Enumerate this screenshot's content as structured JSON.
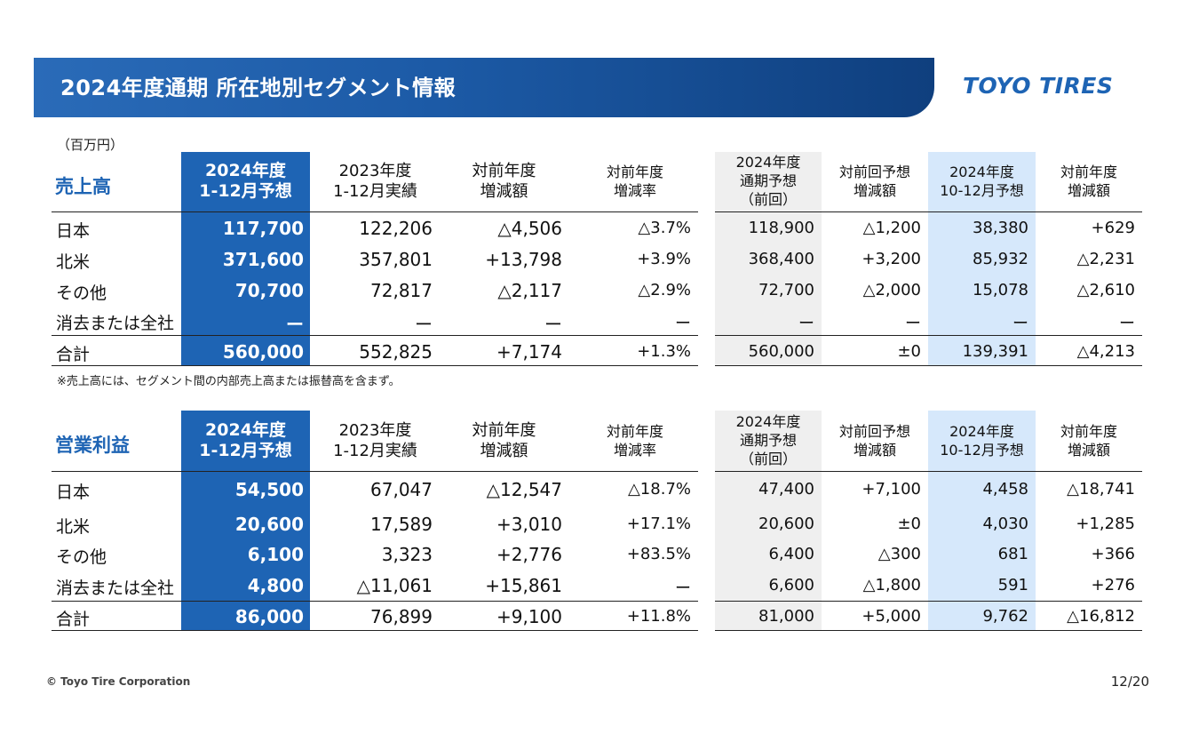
{
  "header": {
    "title": "2024年度通期 所在地別セグメント情報"
  },
  "logo": {
    "text": "TOYO TIRES"
  },
  "unit_label": "（百万円）",
  "columns": {
    "c1": [
      "2024年度",
      "1-12月予想"
    ],
    "c2": [
      "2023年度",
      "1-12月実績"
    ],
    "c3": [
      "対前年度",
      "増減額"
    ],
    "c4": [
      "対前年度",
      "増減率"
    ],
    "c5": [
      "2024年度",
      "通期予想",
      "（前回）"
    ],
    "c6": [
      "対前回予想",
      "増減額"
    ],
    "c7": [
      "2024年度",
      "10-12月予想"
    ],
    "c8": [
      "対前年度",
      "増減額"
    ]
  },
  "sales": {
    "title": "売上高",
    "rows": [
      {
        "label": "日本",
        "v": [
          "117,700",
          "122,206",
          "△4,506",
          "△3.7%",
          "118,900",
          "△1,200",
          "38,380",
          "+629"
        ]
      },
      {
        "label": "北米",
        "v": [
          "371,600",
          "357,801",
          "+13,798",
          "+3.9%",
          "368,400",
          "+3,200",
          "85,932",
          "△2,231"
        ]
      },
      {
        "label": "その他",
        "v": [
          "70,700",
          "72,817",
          "△2,117",
          "△2.9%",
          "72,700",
          "△2,000",
          "15,078",
          "△2,610"
        ]
      },
      {
        "label": "消去または全社",
        "v": [
          "ー",
          "ー",
          "ー",
          "ー",
          "ー",
          "ー",
          "ー",
          "ー"
        ]
      },
      {
        "label": "合計",
        "v": [
          "560,000",
          "552,825",
          "+7,174",
          "+1.3%",
          "560,000",
          "±0",
          "139,391",
          "△4,213"
        ]
      }
    ],
    "note": "※売上高には、セグメント間の内部売上高または振替高を含まず。"
  },
  "profit": {
    "title": "営業利益",
    "rows": [
      {
        "label": "日本",
        "v": [
          "54,500",
          "67,047",
          "△12,547",
          "△18.7%",
          "47,400",
          "+7,100",
          "4,458",
          "△18,741"
        ]
      },
      {
        "label": "北米",
        "v": [
          "20,600",
          "17,589",
          "+3,010",
          "+17.1%",
          "20,600",
          "±0",
          "4,030",
          "+1,285"
        ]
      },
      {
        "label": "その他",
        "v": [
          "6,100",
          "3,323",
          "+2,776",
          "+83.5%",
          "6,400",
          "△300",
          "681",
          "+366"
        ]
      },
      {
        "label": "消去または全社",
        "v": [
          "4,800",
          "△11,061",
          "+15,861",
          "ー",
          "6,600",
          "△1,800",
          "591",
          "+276"
        ]
      },
      {
        "label": "合計",
        "v": [
          "86,000",
          "76,899",
          "+9,100",
          "+11.8%",
          "81,000",
          "+5,000",
          "9,762",
          "△16,812"
        ]
      }
    ]
  },
  "footer": {
    "copyright": "© Toyo Tire Corporation",
    "page": "12/20"
  },
  "colors": {
    "brand_blue": "#1e64b4",
    "highlight_light": "#d6e8fb",
    "previous_forecast_grey": "#efefef"
  }
}
